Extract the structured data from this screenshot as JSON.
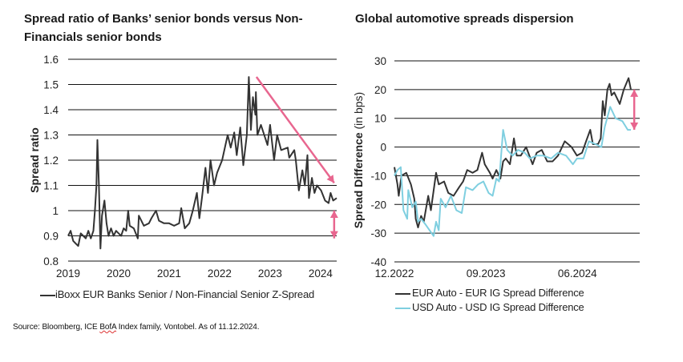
{
  "chart_data": [
    {
      "type": "line",
      "title": "Spread ratio of Banks’ senior bonds versus Non-Financials senior bonds",
      "xlabel": "",
      "ylabel": "Spread ratio",
      "xlim": [
        2019,
        2024.32
      ],
      "ylim": [
        0.8,
        1.6
      ],
      "x_ticks": [
        "2019",
        "2020",
        "2021",
        "2022",
        "2023",
        "2024"
      ],
      "y_ticks": [
        "0.8",
        "0.9",
        "1",
        "1.1",
        "1.2",
        "1.3",
        "1.4",
        "1.5",
        "1.6"
      ],
      "grid": "horizontal",
      "legend": "bottom",
      "series": [
        {
          "name": "iBoxx EUR Banks Senior / Non-Financial Senior Z-Spread",
          "color": "#333333",
          "x": [
            2019.0,
            2019.05,
            2019.1,
            2019.15,
            2019.2,
            2019.25,
            2019.3,
            2019.35,
            2019.4,
            2019.45,
            2019.5,
            2019.53,
            2019.56,
            2019.58,
            2019.61,
            2019.64,
            2019.67,
            2019.72,
            2019.76,
            2019.8,
            2019.85,
            2019.9,
            2019.95,
            2020.0,
            2020.05,
            2020.1,
            2020.15,
            2020.19,
            2020.22,
            2020.3,
            2020.38,
            2020.4,
            2020.5,
            2020.6,
            2020.65,
            2020.74,
            2020.8,
            2020.9,
            2021.0,
            2021.1,
            2021.2,
            2021.24,
            2021.31,
            2021.4,
            2021.47,
            2021.55,
            2021.6,
            2021.65,
            2021.72,
            2021.77,
            2021.82,
            2021.89,
            2021.95,
            2022.05,
            2022.16,
            2022.22,
            2022.29,
            2022.34,
            2022.41,
            2022.47,
            2022.54,
            2022.58,
            2022.62,
            2022.66,
            2022.71,
            2022.72,
            2022.75,
            2022.82,
            2022.95,
            2023.0,
            2023.08,
            2023.14,
            2023.22,
            2023.35,
            2023.38,
            2023.48,
            2023.51,
            2023.57,
            2023.64,
            2023.69,
            2023.74,
            2023.77,
            2023.83,
            2023.88,
            2023.93,
            2024.01,
            2024.09,
            2024.16,
            2024.2,
            2024.25,
            2024.32
          ],
          "y": [
            0.9,
            0.92,
            0.88,
            0.87,
            0.86,
            0.91,
            0.9,
            0.89,
            0.92,
            0.89,
            0.92,
            1.0,
            1.1,
            1.28,
            1.1,
            0.85,
            0.98,
            1.04,
            0.95,
            0.9,
            0.93,
            0.9,
            0.92,
            0.91,
            0.9,
            0.93,
            0.92,
            1.0,
            0.94,
            0.93,
            0.89,
            0.98,
            0.94,
            0.95,
            0.97,
            1.0,
            0.96,
            0.95,
            0.95,
            0.94,
            0.95,
            1.01,
            0.93,
            0.95,
            1.0,
            1.07,
            0.97,
            1.05,
            1.17,
            1.07,
            1.2,
            1.1,
            1.15,
            1.2,
            1.3,
            1.25,
            1.31,
            1.22,
            1.33,
            1.18,
            1.3,
            1.53,
            1.32,
            1.45,
            1.38,
            1.47,
            1.3,
            1.34,
            1.26,
            1.34,
            1.2,
            1.3,
            1.24,
            1.25,
            1.21,
            1.24,
            1.2,
            1.08,
            1.16,
            1.1,
            1.22,
            1.05,
            1.13,
            1.07,
            1.1,
            1.08,
            1.04,
            1.03,
            1.07,
            1.04,
            1.05
          ]
        }
      ],
      "annotations": [
        {
          "type": "arrow",
          "color": "#e8668f",
          "from": [
            2022.73,
            1.53
          ],
          "to": [
            2024.27,
            1.11
          ]
        },
        {
          "type": "double-arrow",
          "color": "#e8668f",
          "from": [
            2024.27,
            1.0
          ],
          "to": [
            2024.27,
            0.89
          ]
        }
      ]
    },
    {
      "type": "line",
      "title": "Global automotive spreads dispersion",
      "xlabel": "",
      "ylabel": "Spread Difference (in bps)",
      "ylabel_bold": "Spread Difference",
      "ylabel_unit": " (in bps)",
      "xlim": [
        "2022-12-01",
        "2024-12-05"
      ],
      "ylim": [
        -40,
        30
      ],
      "x_ticks": [
        {
          "label": "12.2022",
          "date": "2022-12-01"
        },
        {
          "label": "09.2023",
          "date": "2023-09-01"
        },
        {
          "label": "06.2024",
          "date": "2024-06-01"
        }
      ],
      "y_ticks": [
        "-40",
        "-30",
        "-20",
        "-10",
        "0",
        "10",
        "20",
        "30"
      ],
      "grid": "horizontal",
      "legend": "bottom",
      "series": [
        {
          "name": "EUR Auto - EUR IG Spread Difference",
          "color": "#333333",
          "x": [
            "2022-12-01",
            "2022-12-10",
            "2022-12-14",
            "2022-12-22",
            "2023-01-06",
            "2023-01-20",
            "2023-01-30",
            "2023-02-04",
            "2023-02-11",
            "2023-02-20",
            "2023-02-28",
            "2023-03-11",
            "2023-03-19",
            "2023-04-04",
            "2023-04-12",
            "2023-04-28",
            "2023-05-10",
            "2023-05-26",
            "2023-06-12",
            "2023-06-24",
            "2023-07-06",
            "2023-07-22",
            "2023-08-06",
            "2023-08-20",
            "2023-08-28",
            "2023-09-13",
            "2023-09-21",
            "2023-10-02",
            "2023-10-14",
            "2023-10-22",
            "2023-10-30",
            "2023-11-12",
            "2023-11-24",
            "2023-12-02",
            "2023-12-14",
            "2023-12-30",
            "2024-01-19",
            "2024-02-01",
            "2024-02-16",
            "2024-03-02",
            "2024-03-18",
            "2024-04-04",
            "2024-04-24",
            "2024-05-14",
            "2024-05-30",
            "2024-06-15",
            "2024-06-27",
            "2024-07-09",
            "2024-07-17",
            "2024-08-02",
            "2024-08-10",
            "2024-08-16",
            "2024-08-22",
            "2024-08-30",
            "2024-09-06",
            "2024-09-12",
            "2024-09-20",
            "2024-10-06",
            "2024-10-18",
            "2024-11-02",
            "2024-11-09"
          ],
          "y": [
            -7,
            -13,
            -17,
            -10,
            -9,
            -13,
            -18,
            -25,
            -28,
            -24,
            -26,
            -17,
            -22,
            -9,
            -13,
            -12,
            -16,
            -17,
            -14,
            -12,
            -8,
            -9,
            -8,
            -2,
            -6,
            -9,
            -11,
            -8,
            -11,
            -5,
            -4,
            -6,
            3,
            -3,
            -3,
            0,
            -6,
            -2,
            -1,
            -5,
            -5,
            -3,
            2,
            0,
            -3,
            -2,
            2,
            6,
            1,
            1,
            3,
            16,
            11,
            20,
            22,
            18,
            19,
            15,
            20,
            24,
            20
          ]
        },
        {
          "name": "USD Auto - USD IG Spread Difference",
          "color": "#7fcfe0",
          "x": [
            "2022-12-01",
            "2022-12-10",
            "2022-12-20",
            "2022-12-28",
            "2023-01-09",
            "2023-01-12",
            "2023-01-24",
            "2023-02-04",
            "2023-02-11",
            "2023-02-20",
            "2023-03-03",
            "2023-03-15",
            "2023-03-27",
            "2023-04-04",
            "2023-04-12",
            "2023-04-18",
            "2023-05-02",
            "2023-05-18",
            "2023-06-04",
            "2023-06-20",
            "2023-07-02",
            "2023-07-22",
            "2023-08-08",
            "2023-08-24",
            "2023-09-09",
            "2023-09-21",
            "2023-10-02",
            "2023-10-10",
            "2023-10-22",
            "2023-11-04",
            "2023-11-20",
            "2023-12-06",
            "2023-12-26",
            "2024-01-11",
            "2024-02-01",
            "2024-02-20",
            "2024-03-14",
            "2024-04-04",
            "2024-04-28",
            "2024-05-18",
            "2024-05-30",
            "2024-06-19",
            "2024-07-05",
            "2024-07-25",
            "2024-08-12",
            "2024-08-22",
            "2024-09-08",
            "2024-09-24",
            "2024-10-14",
            "2024-10-30",
            "2024-11-09"
          ],
          "y": [
            -10,
            -8,
            -7,
            -22,
            -25,
            -15,
            -21,
            -19,
            -26,
            -25,
            -27,
            -29,
            -31,
            -26,
            -29,
            -18,
            -21,
            -17,
            -22,
            -23,
            -14,
            -15,
            -13,
            -12,
            -16,
            -17,
            -11,
            -12,
            6,
            -1,
            -3,
            -1,
            -2,
            -4,
            -3,
            -3,
            -4,
            -2,
            -3,
            -6,
            -4,
            -4,
            2,
            1,
            0,
            7,
            14,
            10,
            9,
            6,
            6
          ]
        }
      ],
      "annotations": [
        {
          "type": "double-arrow",
          "color": "#e8668f",
          "from": [
            "2024-11-19",
            20
          ],
          "to": [
            "2024-11-19",
            6
          ]
        }
      ]
    }
  ],
  "source": {
    "before": "Source: Bloomberg, ICE ",
    "flagged_word": "BofA",
    "after": " Index family, Vontobel. As of 11.12.2024."
  }
}
